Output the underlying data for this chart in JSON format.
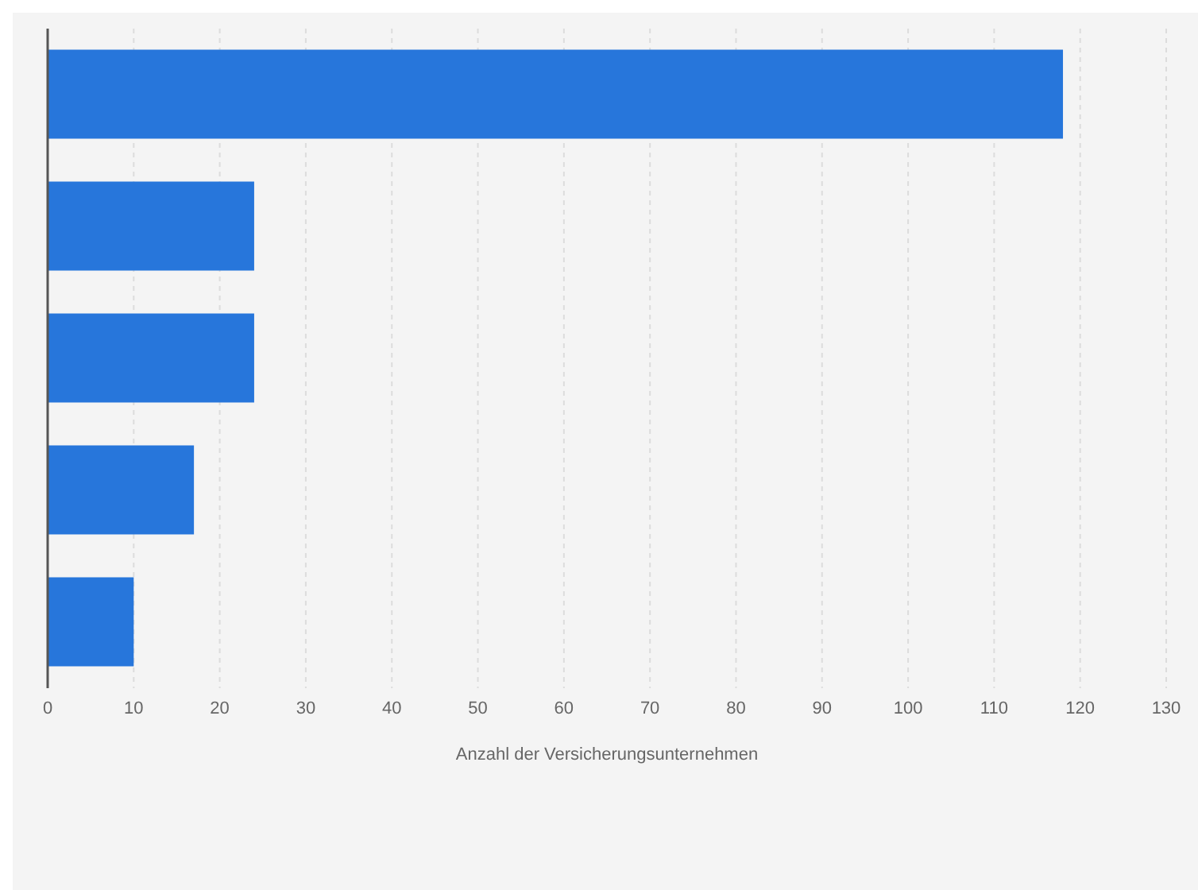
{
  "chart_data": {
    "type": "bar",
    "orientation": "horizontal",
    "xlabel": "Anzahl der Versicherungsunternehmen",
    "categories": [
      null,
      null,
      null,
      null,
      null
    ],
    "values": [
      118,
      24,
      24,
      17,
      10
    ],
    "color": "#2776db",
    "xlim": [
      0,
      130
    ],
    "xticks": [
      0,
      10,
      20,
      30,
      40,
      50,
      60,
      70,
      80,
      90,
      100,
      110,
      120,
      130
    ],
    "grid": "x",
    "tick_labels": "x"
  }
}
